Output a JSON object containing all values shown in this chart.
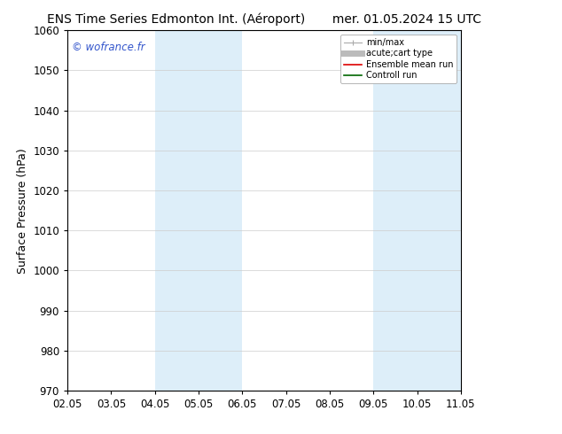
{
  "title_left": "ENS Time Series Edmonton Int. (Aéroport)",
  "title_right": "mer. 01.05.2024 15 UTC",
  "ylabel": "Surface Pressure (hPa)",
  "ylim": [
    970,
    1060
  ],
  "yticks": [
    970,
    980,
    990,
    1000,
    1010,
    1020,
    1030,
    1040,
    1050,
    1060
  ],
  "xlim": [
    0,
    9
  ],
  "xtick_labels": [
    "02.05",
    "03.05",
    "04.05",
    "05.05",
    "06.05",
    "07.05",
    "08.05",
    "09.05",
    "10.05",
    "11.05"
  ],
  "xtick_positions": [
    0,
    1,
    2,
    3,
    4,
    5,
    6,
    7,
    8,
    9
  ],
  "shaded_bands": [
    {
      "xmin": 2,
      "xmax": 3,
      "color": "#ddeef9"
    },
    {
      "xmin": 3,
      "xmax": 4,
      "color": "#ddeef9"
    },
    {
      "xmin": 7,
      "xmax": 8,
      "color": "#ddeef9"
    },
    {
      "xmin": 8,
      "xmax": 9,
      "color": "#ddeef9"
    }
  ],
  "watermark": "© wofrance.fr",
  "watermark_color": "#3355cc",
  "bg_color": "#ffffff",
  "plot_bg_color": "#ffffff",
  "grid_color": "#cccccc",
  "legend_entries": [
    {
      "label": "min/max",
      "color": "#aaaaaa",
      "lw": 1,
      "style": "minmax"
    },
    {
      "label": "acute;cart type",
      "color": "#bbbbbb",
      "lw": 5,
      "style": "thick"
    },
    {
      "label": "Ensemble mean run",
      "color": "#dd0000",
      "lw": 1.2,
      "style": "line"
    },
    {
      "label": "Controll run",
      "color": "#006600",
      "lw": 1.2,
      "style": "line"
    }
  ],
  "title_fontsize": 10,
  "axis_label_fontsize": 9,
  "tick_fontsize": 8.5
}
